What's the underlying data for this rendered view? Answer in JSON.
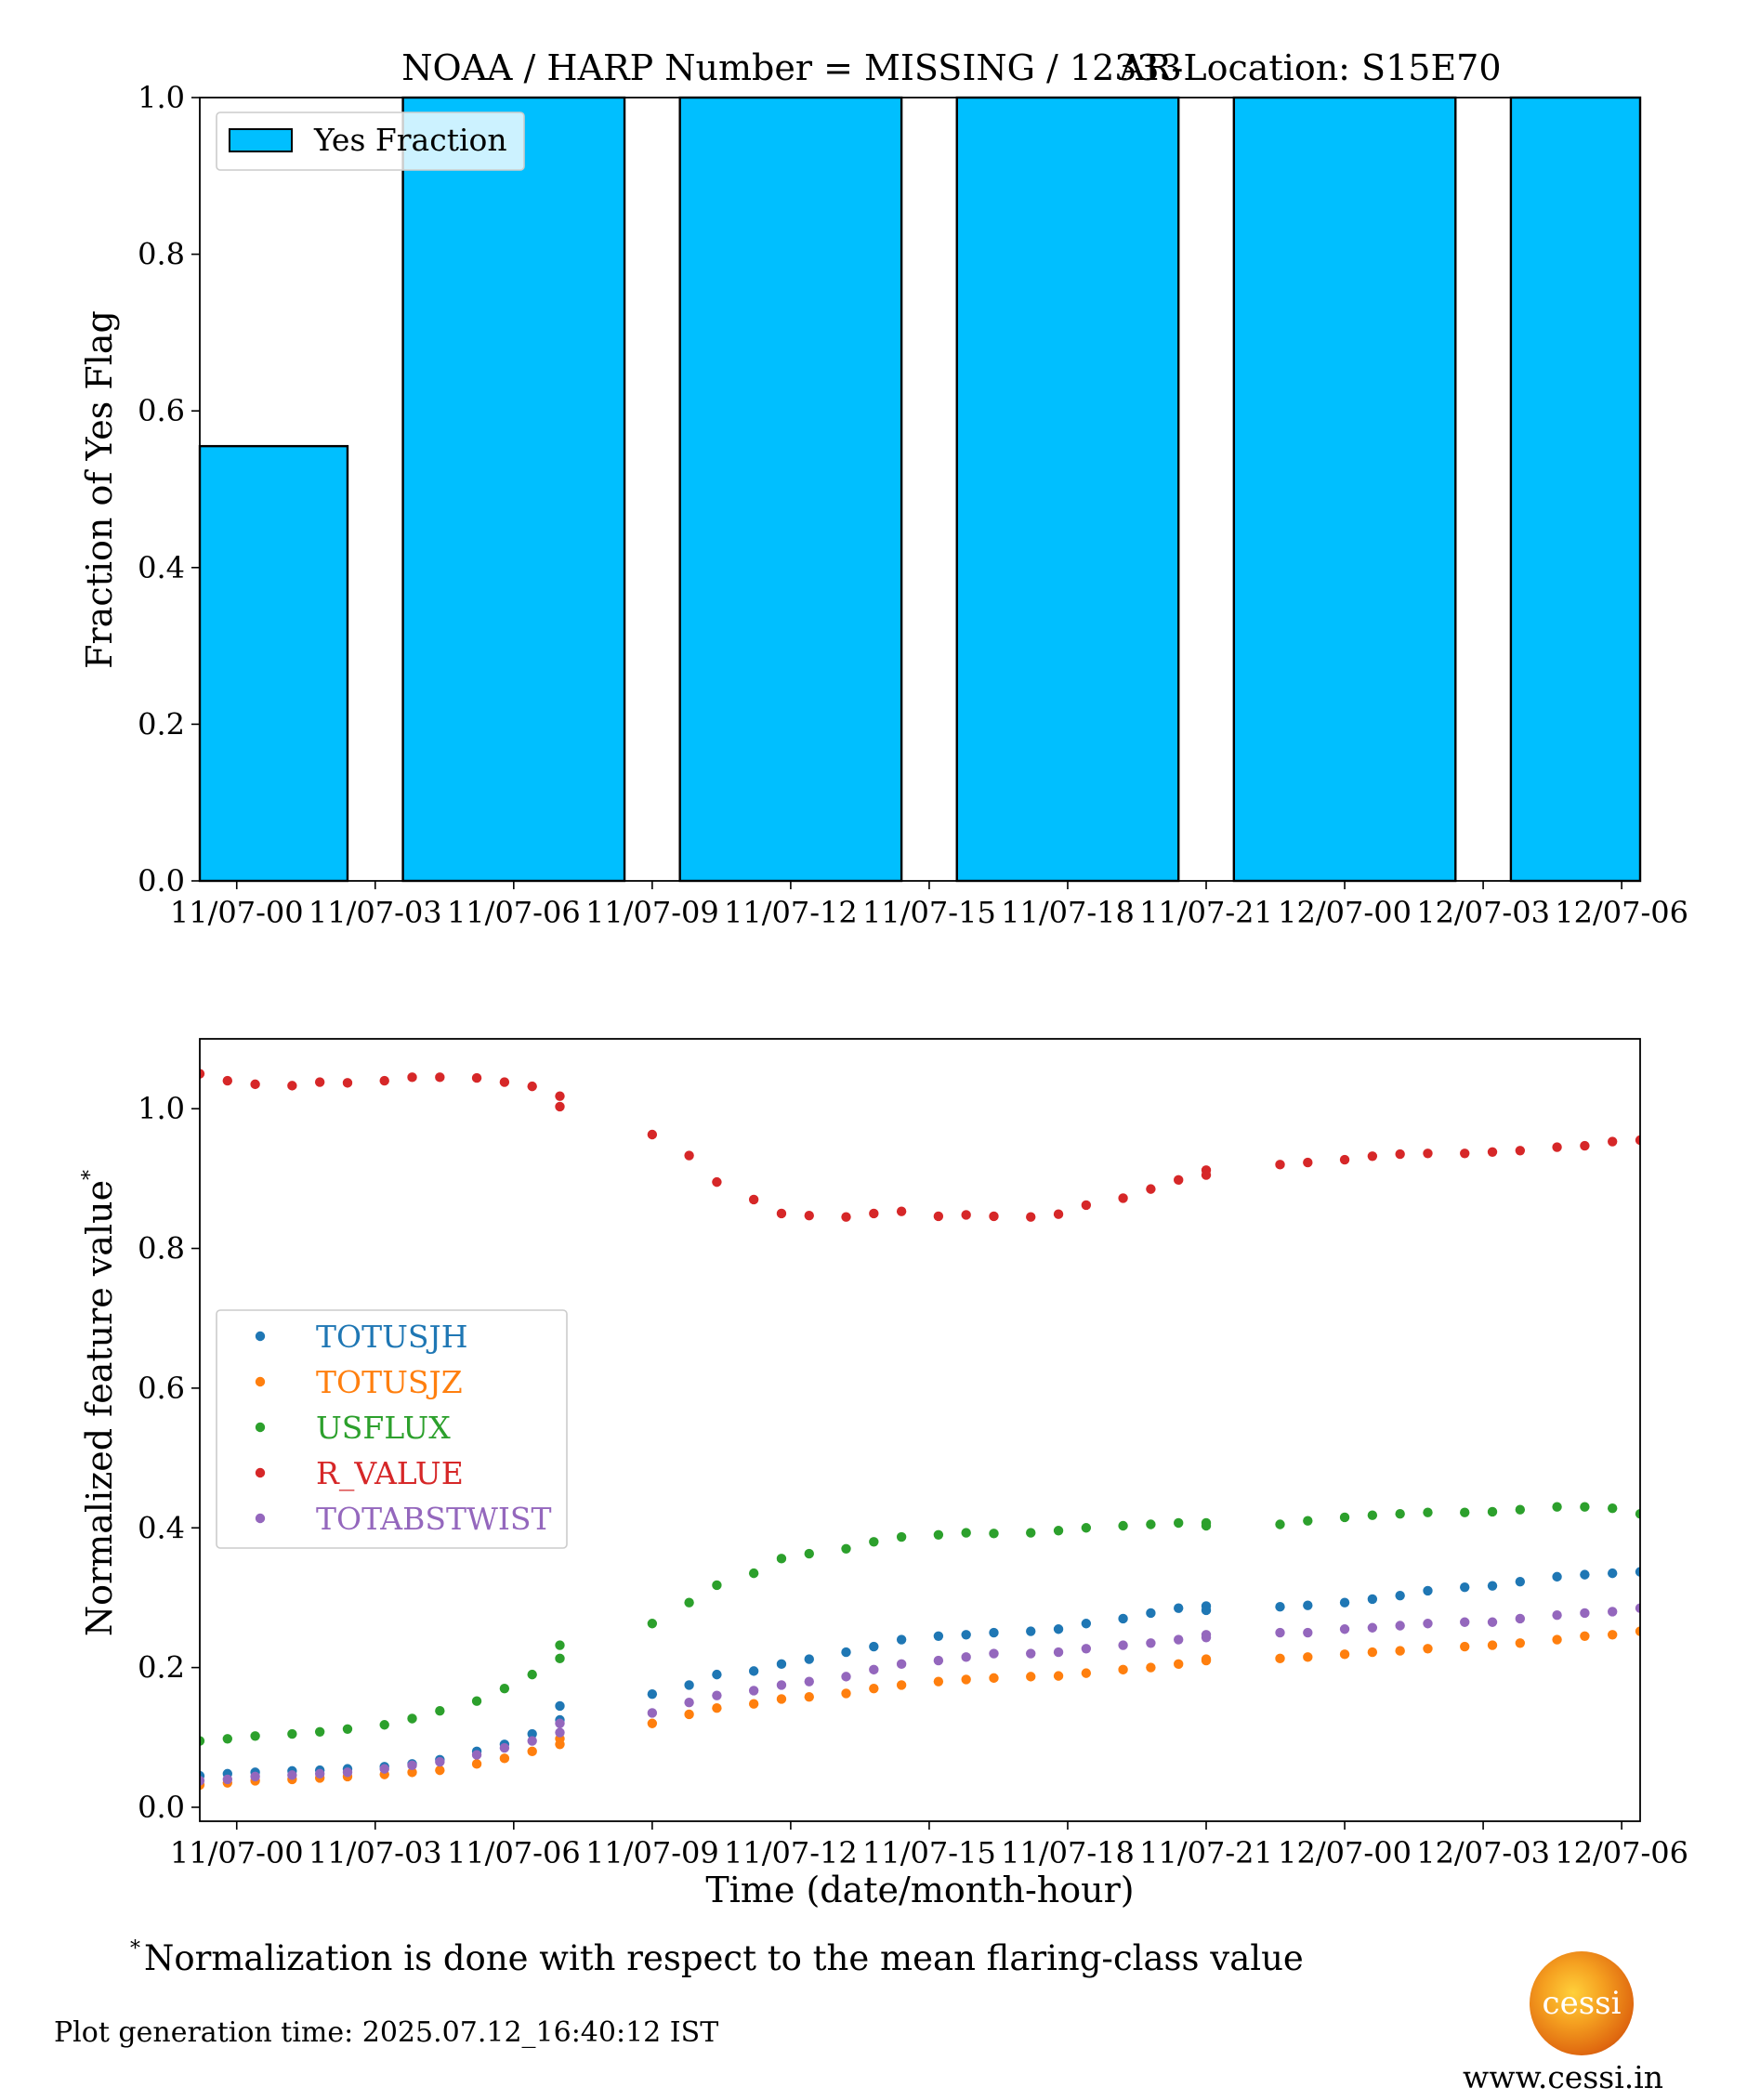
{
  "footer": {
    "footnote_mark": "*",
    "footnote_text": "Normalization is done with respect to the mean flaring-class value",
    "generation_time": "Plot generation time: 2025.07.12_16:40:12 IST",
    "logo_text": "cessi",
    "website": "www.cessi.in"
  },
  "chart_data": [
    {
      "type": "bar",
      "title": "NOAA / HARP Number = MISSING / 12333",
      "subtitle": "AR-Location: S15E70",
      "xlabel": "",
      "ylabel": "Fraction of Yes Flag",
      "x_ticks": [
        "11/07-00",
        "11/07-03",
        "11/07-06",
        "11/07-09",
        "11/07-12",
        "11/07-15",
        "11/07-18",
        "11/07-21",
        "12/07-00",
        "12/07-03",
        "12/07-06"
      ],
      "ylim": [
        0,
        1.0
      ],
      "y_ticks": [
        0.0,
        0.2,
        0.4,
        0.6,
        0.8,
        1.0
      ],
      "series": [
        {
          "name": "Yes Fraction",
          "color": "#00bfff",
          "bars": [
            {
              "start": -0.8,
              "end": 2.4,
              "value": 0.555
            },
            {
              "start": 3.6,
              "end": 8.4,
              "value": 1.0
            },
            {
              "start": 9.6,
              "end": 14.4,
              "value": 1.0
            },
            {
              "start": 15.6,
              "end": 20.4,
              "value": 1.0
            },
            {
              "start": 21.6,
              "end": 26.4,
              "value": 1.0
            },
            {
              "start": 27.6,
              "end": 30.4,
              "value": 1.0
            }
          ]
        }
      ],
      "legend": "upper-left",
      "grid": false
    },
    {
      "type": "scatter",
      "xlabel": "Time (date/month-hour)",
      "ylabel": "Normalized feature value",
      "ylabel_mark": "*",
      "x_ticks": [
        "11/07-00",
        "11/07-03",
        "11/07-06",
        "11/07-09",
        "11/07-12",
        "11/07-15",
        "11/07-18",
        "11/07-21",
        "12/07-00",
        "12/07-03",
        "12/07-06"
      ],
      "ylim": [
        -0.02,
        1.1
      ],
      "y_ticks": [
        0.0,
        0.2,
        0.4,
        0.6,
        0.8,
        1.0
      ],
      "legend": "center-left",
      "grid": false,
      "series": [
        {
          "name": "TOTUSJH",
          "color": "#1f77b4",
          "points": [
            [
              -0.8,
              0.045
            ],
            [
              -0.2,
              0.048
            ],
            [
              0.4,
              0.05
            ],
            [
              1.2,
              0.052
            ],
            [
              1.8,
              0.053
            ],
            [
              2.4,
              0.055
            ],
            [
              3.2,
              0.058
            ],
            [
              3.8,
              0.062
            ],
            [
              4.4,
              0.068
            ],
            [
              5.2,
              0.08
            ],
            [
              5.8,
              0.09
            ],
            [
              6.4,
              0.105
            ],
            [
              7.0,
              0.125
            ],
            [
              7.0,
              0.145
            ],
            [
              9.0,
              0.162
            ],
            [
              9.8,
              0.175
            ],
            [
              10.4,
              0.19
            ],
            [
              11.2,
              0.195
            ],
            [
              11.8,
              0.205
            ],
            [
              12.4,
              0.212
            ],
            [
              13.2,
              0.222
            ],
            [
              13.8,
              0.23
            ],
            [
              14.4,
              0.24
            ],
            [
              15.2,
              0.245
            ],
            [
              15.8,
              0.247
            ],
            [
              16.4,
              0.25
            ],
            [
              17.2,
              0.252
            ],
            [
              17.8,
              0.255
            ],
            [
              18.4,
              0.263
            ],
            [
              19.2,
              0.27
            ],
            [
              19.8,
              0.278
            ],
            [
              20.4,
              0.285
            ],
            [
              21.0,
              0.288
            ],
            [
              21.0,
              0.282
            ],
            [
              22.6,
              0.287
            ],
            [
              23.2,
              0.289
            ],
            [
              24.0,
              0.293
            ],
            [
              24.6,
              0.298
            ],
            [
              25.2,
              0.303
            ],
            [
              25.8,
              0.31
            ],
            [
              26.6,
              0.315
            ],
            [
              27.2,
              0.317
            ],
            [
              27.8,
              0.323
            ],
            [
              28.6,
              0.33
            ],
            [
              29.2,
              0.333
            ],
            [
              29.8,
              0.335
            ],
            [
              30.4,
              0.337
            ]
          ]
        },
        {
          "name": "TOTUSJZ",
          "color": "#ff7f0e",
          "points": [
            [
              -0.8,
              0.032
            ],
            [
              -0.2,
              0.035
            ],
            [
              0.4,
              0.038
            ],
            [
              1.2,
              0.04
            ],
            [
              1.8,
              0.042
            ],
            [
              2.4,
              0.044
            ],
            [
              3.2,
              0.047
            ],
            [
              3.8,
              0.05
            ],
            [
              4.4,
              0.053
            ],
            [
              5.2,
              0.062
            ],
            [
              5.8,
              0.07
            ],
            [
              6.4,
              0.08
            ],
            [
              7.0,
              0.09
            ],
            [
              7.0,
              0.098
            ],
            [
              9.0,
              0.12
            ],
            [
              9.8,
              0.133
            ],
            [
              10.4,
              0.142
            ],
            [
              11.2,
              0.148
            ],
            [
              11.8,
              0.155
            ],
            [
              12.4,
              0.158
            ],
            [
              13.2,
              0.163
            ],
            [
              13.8,
              0.17
            ],
            [
              14.4,
              0.175
            ],
            [
              15.2,
              0.18
            ],
            [
              15.8,
              0.183
            ],
            [
              16.4,
              0.185
            ],
            [
              17.2,
              0.187
            ],
            [
              17.8,
              0.188
            ],
            [
              18.4,
              0.192
            ],
            [
              19.2,
              0.197
            ],
            [
              19.8,
              0.2
            ],
            [
              20.4,
              0.205
            ],
            [
              21.0,
              0.21
            ],
            [
              21.0,
              0.212
            ],
            [
              22.6,
              0.213
            ],
            [
              23.2,
              0.215
            ],
            [
              24.0,
              0.219
            ],
            [
              24.6,
              0.222
            ],
            [
              25.2,
              0.224
            ],
            [
              25.8,
              0.227
            ],
            [
              26.6,
              0.23
            ],
            [
              27.2,
              0.232
            ],
            [
              27.8,
              0.235
            ],
            [
              28.6,
              0.24
            ],
            [
              29.2,
              0.245
            ],
            [
              29.8,
              0.247
            ],
            [
              30.4,
              0.252
            ]
          ]
        },
        {
          "name": "USFLUX",
          "color": "#2ca02c",
          "points": [
            [
              -0.8,
              0.095
            ],
            [
              -0.2,
              0.098
            ],
            [
              0.4,
              0.102
            ],
            [
              1.2,
              0.105
            ],
            [
              1.8,
              0.108
            ],
            [
              2.4,
              0.112
            ],
            [
              3.2,
              0.118
            ],
            [
              3.8,
              0.127
            ],
            [
              4.4,
              0.138
            ],
            [
              5.2,
              0.152
            ],
            [
              5.8,
              0.17
            ],
            [
              6.4,
              0.19
            ],
            [
              7.0,
              0.213
            ],
            [
              7.0,
              0.232
            ],
            [
              9.0,
              0.263
            ],
            [
              9.8,
              0.293
            ],
            [
              10.4,
              0.318
            ],
            [
              11.2,
              0.335
            ],
            [
              11.8,
              0.356
            ],
            [
              12.4,
              0.363
            ],
            [
              13.2,
              0.37
            ],
            [
              13.8,
              0.38
            ],
            [
              14.4,
              0.387
            ],
            [
              15.2,
              0.39
            ],
            [
              15.8,
              0.393
            ],
            [
              16.4,
              0.392
            ],
            [
              17.2,
              0.393
            ],
            [
              17.8,
              0.396
            ],
            [
              18.4,
              0.4
            ],
            [
              19.2,
              0.403
            ],
            [
              19.8,
              0.405
            ],
            [
              20.4,
              0.407
            ],
            [
              21.0,
              0.407
            ],
            [
              21.0,
              0.403
            ],
            [
              22.6,
              0.405
            ],
            [
              23.2,
              0.41
            ],
            [
              24.0,
              0.415
            ],
            [
              24.6,
              0.418
            ],
            [
              25.2,
              0.42
            ],
            [
              25.8,
              0.422
            ],
            [
              26.6,
              0.422
            ],
            [
              27.2,
              0.423
            ],
            [
              27.8,
              0.426
            ],
            [
              28.6,
              0.43
            ],
            [
              29.2,
              0.43
            ],
            [
              29.8,
              0.428
            ],
            [
              30.4,
              0.42
            ]
          ]
        },
        {
          "name": "R_VALUE",
          "color": "#d62728",
          "points": [
            [
              -0.8,
              1.05
            ],
            [
              -0.2,
              1.04
            ],
            [
              0.4,
              1.035
            ],
            [
              1.2,
              1.033
            ],
            [
              1.8,
              1.038
            ],
            [
              2.4,
              1.037
            ],
            [
              3.2,
              1.04
            ],
            [
              3.8,
              1.045
            ],
            [
              4.4,
              1.045
            ],
            [
              5.2,
              1.044
            ],
            [
              5.8,
              1.038
            ],
            [
              6.4,
              1.032
            ],
            [
              7.0,
              1.018
            ],
            [
              7.0,
              1.003
            ],
            [
              9.0,
              0.963
            ],
            [
              9.8,
              0.933
            ],
            [
              10.4,
              0.895
            ],
            [
              11.2,
              0.87
            ],
            [
              11.8,
              0.85
            ],
            [
              12.4,
              0.847
            ],
            [
              13.2,
              0.845
            ],
            [
              13.8,
              0.85
            ],
            [
              14.4,
              0.853
            ],
            [
              15.2,
              0.846
            ],
            [
              15.8,
              0.848
            ],
            [
              16.4,
              0.846
            ],
            [
              17.2,
              0.845
            ],
            [
              17.8,
              0.849
            ],
            [
              18.4,
              0.862
            ],
            [
              19.2,
              0.872
            ],
            [
              19.8,
              0.885
            ],
            [
              20.4,
              0.898
            ],
            [
              21.0,
              0.912
            ],
            [
              21.0,
              0.905
            ],
            [
              22.6,
              0.92
            ],
            [
              23.2,
              0.923
            ],
            [
              24.0,
              0.927
            ],
            [
              24.6,
              0.932
            ],
            [
              25.2,
              0.935
            ],
            [
              25.8,
              0.936
            ],
            [
              26.6,
              0.936
            ],
            [
              27.2,
              0.938
            ],
            [
              27.8,
              0.94
            ],
            [
              28.6,
              0.945
            ],
            [
              29.2,
              0.947
            ],
            [
              29.8,
              0.953
            ],
            [
              30.4,
              0.955
            ]
          ]
        },
        {
          "name": "TOTABSTWIST",
          "color": "#9467bd",
          "points": [
            [
              -0.8,
              0.038
            ],
            [
              -0.2,
              0.04
            ],
            [
              0.4,
              0.044
            ],
            [
              1.2,
              0.046
            ],
            [
              1.8,
              0.048
            ],
            [
              2.4,
              0.05
            ],
            [
              3.2,
              0.055
            ],
            [
              3.8,
              0.06
            ],
            [
              4.4,
              0.065
            ],
            [
              5.2,
              0.075
            ],
            [
              5.8,
              0.085
            ],
            [
              6.4,
              0.095
            ],
            [
              7.0,
              0.107
            ],
            [
              7.0,
              0.12
            ],
            [
              9.0,
              0.135
            ],
            [
              9.8,
              0.15
            ],
            [
              10.4,
              0.16
            ],
            [
              11.2,
              0.167
            ],
            [
              11.8,
              0.175
            ],
            [
              12.4,
              0.18
            ],
            [
              13.2,
              0.187
            ],
            [
              13.8,
              0.197
            ],
            [
              14.4,
              0.205
            ],
            [
              15.2,
              0.21
            ],
            [
              15.8,
              0.215
            ],
            [
              16.4,
              0.22
            ],
            [
              17.2,
              0.22
            ],
            [
              17.8,
              0.222
            ],
            [
              18.4,
              0.227
            ],
            [
              19.2,
              0.232
            ],
            [
              19.8,
              0.235
            ],
            [
              20.4,
              0.24
            ],
            [
              21.0,
              0.243
            ],
            [
              21.0,
              0.247
            ],
            [
              22.6,
              0.25
            ],
            [
              23.2,
              0.25
            ],
            [
              24.0,
              0.255
            ],
            [
              24.6,
              0.257
            ],
            [
              25.2,
              0.26
            ],
            [
              25.8,
              0.263
            ],
            [
              26.6,
              0.265
            ],
            [
              27.2,
              0.265
            ],
            [
              27.8,
              0.27
            ],
            [
              28.6,
              0.275
            ],
            [
              29.2,
              0.278
            ],
            [
              29.8,
              0.28
            ],
            [
              30.4,
              0.285
            ]
          ]
        }
      ]
    }
  ]
}
